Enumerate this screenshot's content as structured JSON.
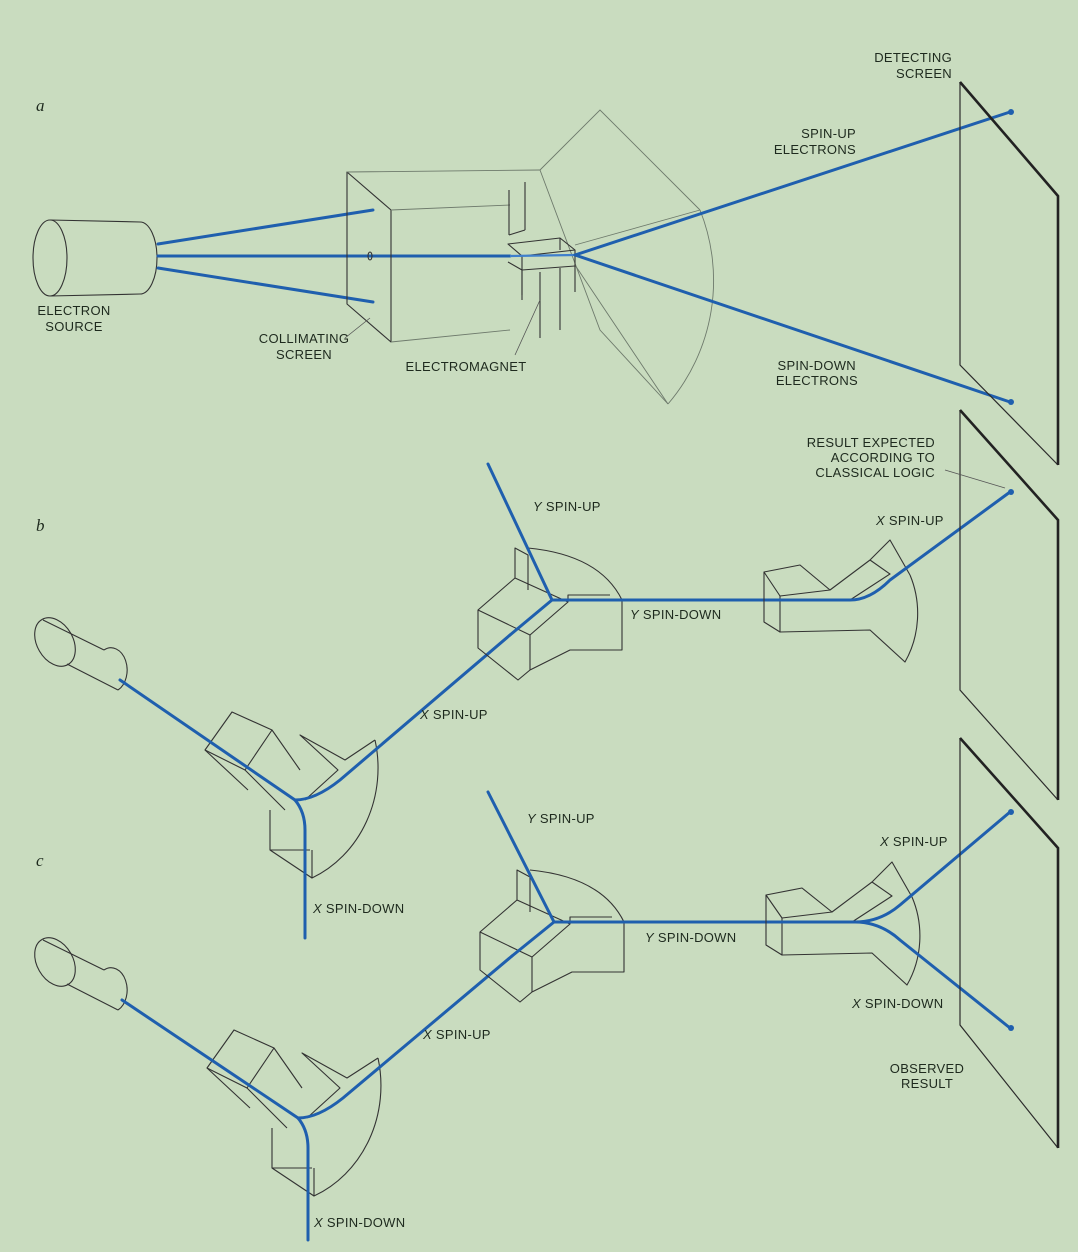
{
  "panels": {
    "a": "a",
    "b": "b",
    "c": "c"
  },
  "labels": {
    "electron_source_1": "ELECTRON",
    "electron_source_2": "SOURCE",
    "collimating_1": "COLLIMATING",
    "collimating_2": "SCREEN",
    "electromagnet": "ELECTROMAGNET",
    "detecting_1": "DETECTING",
    "detecting_2": "SCREEN",
    "spin_up_1": "SPIN-UP",
    "spin_up_2": "ELECTRONS",
    "spin_down_1": "SPIN-DOWN",
    "spin_down_2": "ELECTRONS",
    "expected_1": "RESULT EXPECTED",
    "expected_2": "ACCORDING TO",
    "expected_3": "CLASSICAL LOGIC",
    "observed_1": "OBSERVED",
    "observed_2": "RESULT",
    "axis_x": "X",
    "axis_y": "Y",
    "spin_up": "SPIN-UP",
    "spin_down": "SPIN-DOWN"
  },
  "colors": {
    "background": "#c9dcbf",
    "beam": "#1f5fae",
    "ink": "#333333"
  }
}
